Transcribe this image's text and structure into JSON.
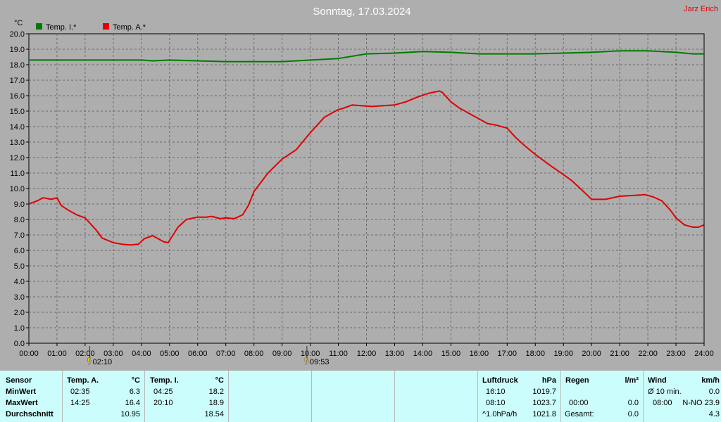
{
  "header": {
    "title": "Sonntag, 17.03.2024",
    "author": "Jarz Erich"
  },
  "chart_data": {
    "type": "line",
    "title": "Sonntag, 17.03.2024",
    "ylabel": "°C",
    "ylim": [
      0,
      20
    ],
    "y_ticks": [
      "0.0",
      "1.0",
      "2.0",
      "3.0",
      "4.0",
      "5.0",
      "6.0",
      "7.0",
      "8.0",
      "9.0",
      "10.0",
      "11.0",
      "12.0",
      "13.0",
      "14.0",
      "15.0",
      "16.0",
      "17.0",
      "18.0",
      "19.0",
      "20.0"
    ],
    "x_ticks": [
      "00:00",
      "01:00",
      "02:00",
      "03:00",
      "04:00",
      "05:00",
      "06:00",
      "07:00",
      "08:00",
      "09:00",
      "10:00",
      "11:00",
      "12:00",
      "13:00",
      "14:00",
      "15:00",
      "16:00",
      "17:00",
      "18:00",
      "19:00",
      "20:00",
      "21:00",
      "22:00",
      "23:00",
      "24:00"
    ],
    "xlim_hours": [
      0,
      24
    ],
    "grid": true,
    "legend_position": "top-left",
    "markers": [
      {
        "label": "02:10",
        "hour": 2.167
      },
      {
        "label": "09:53",
        "hour": 9.883
      }
    ],
    "series": [
      {
        "name": "Temp. I.*",
        "color": "#007a00",
        "x": [
          0,
          1,
          2,
          3,
          4,
          4.4,
          5,
          6,
          7,
          8,
          9,
          9.5,
          10,
          11,
          12,
          13,
          14,
          15,
          16,
          17,
          18,
          19,
          20,
          21,
          22,
          23,
          23.6,
          24
        ],
        "y": [
          18.3,
          18.3,
          18.3,
          18.3,
          18.3,
          18.25,
          18.3,
          18.25,
          18.2,
          18.2,
          18.2,
          18.25,
          18.3,
          18.4,
          18.7,
          18.75,
          18.85,
          18.8,
          18.7,
          18.7,
          18.7,
          18.75,
          18.8,
          18.9,
          18.9,
          18.8,
          18.7,
          18.7
        ]
      },
      {
        "name": "Temp. A.*",
        "color": "#e00000",
        "x": [
          0,
          0.3,
          0.5,
          0.8,
          1,
          1.15,
          1.4,
          1.7,
          2,
          2.4,
          2.6,
          3,
          3.3,
          3.6,
          3.9,
          4.1,
          4.4,
          4.8,
          4.95,
          5.3,
          5.6,
          6,
          6.3,
          6.5,
          6.8,
          7,
          7.3,
          7.6,
          7.8,
          8,
          8.5,
          9,
          9.5,
          10,
          10.5,
          11,
          11.2,
          11.5,
          11.8,
          12.2,
          12.6,
          13,
          13.4,
          13.8,
          14.2,
          14.6,
          14.7,
          15,
          15.3,
          15.5,
          15.8,
          16,
          16.3,
          16.6,
          17,
          17.3,
          17.6,
          18,
          18.3,
          18.6,
          19,
          19.3,
          19.6,
          20,
          20.5,
          21,
          21.5,
          21.9,
          22.2,
          22.5,
          22.8,
          23,
          23.3,
          23.6,
          23.8,
          24
        ],
        "y": [
          9.0,
          9.2,
          9.4,
          9.3,
          9.4,
          8.9,
          8.6,
          8.3,
          8.1,
          7.3,
          6.8,
          6.5,
          6.4,
          6.35,
          6.4,
          6.75,
          6.95,
          6.55,
          6.5,
          7.5,
          8.0,
          8.15,
          8.15,
          8.2,
          8.05,
          8.1,
          8.05,
          8.3,
          8.9,
          9.8,
          11.0,
          11.9,
          12.5,
          13.6,
          14.6,
          15.1,
          15.2,
          15.4,
          15.35,
          15.3,
          15.35,
          15.4,
          15.6,
          15.9,
          16.15,
          16.3,
          16.2,
          15.6,
          15.2,
          15.0,
          14.7,
          14.5,
          14.2,
          14.1,
          13.9,
          13.3,
          12.8,
          12.2,
          11.8,
          11.4,
          10.9,
          10.5,
          10.0,
          9.3,
          9.3,
          9.5,
          9.55,
          9.6,
          9.45,
          9.2,
          8.6,
          8.1,
          7.65,
          7.5,
          7.5,
          7.65
        ]
      }
    ]
  },
  "stats": {
    "sensor": {
      "title": "Sensor",
      "rows": [
        "MinWert",
        "MaxWert",
        "Durchschnitt"
      ]
    },
    "temp_a": {
      "title": "Temp. A.",
      "unit": "°C",
      "min_time": "02:35",
      "min_val": "6.3",
      "max_time": "14:25",
      "max_val": "16.4",
      "avg": "10.95"
    },
    "temp_i": {
      "title": "Temp. I.",
      "unit": "°C",
      "min_time": "04:25",
      "min_val": "18.2",
      "max_time": "20:10",
      "max_val": "18.9",
      "avg": "18.54"
    },
    "pressure": {
      "title": "Luftdruck",
      "unit": "hPa",
      "min_time": "16:10",
      "min_val": "1019.7",
      "max_time": "08:10",
      "max_val": "1023.7",
      "trend_label": "^1.0hPa/h",
      "avg": "1021.8"
    },
    "rain": {
      "title": "Regen",
      "unit": "l/m²",
      "max_time": "00:00",
      "max_val": "0.0",
      "min_val": "0.0",
      "total_label": "Gesamt:",
      "total": "0.0"
    },
    "wind": {
      "title": "Wind",
      "unit": "km/h",
      "avg_label": "Ø 10 min.",
      "avg_val": "0.0",
      "max_time": "08:00",
      "max_val": "N-NO 23.9",
      "last": "4.3"
    }
  }
}
